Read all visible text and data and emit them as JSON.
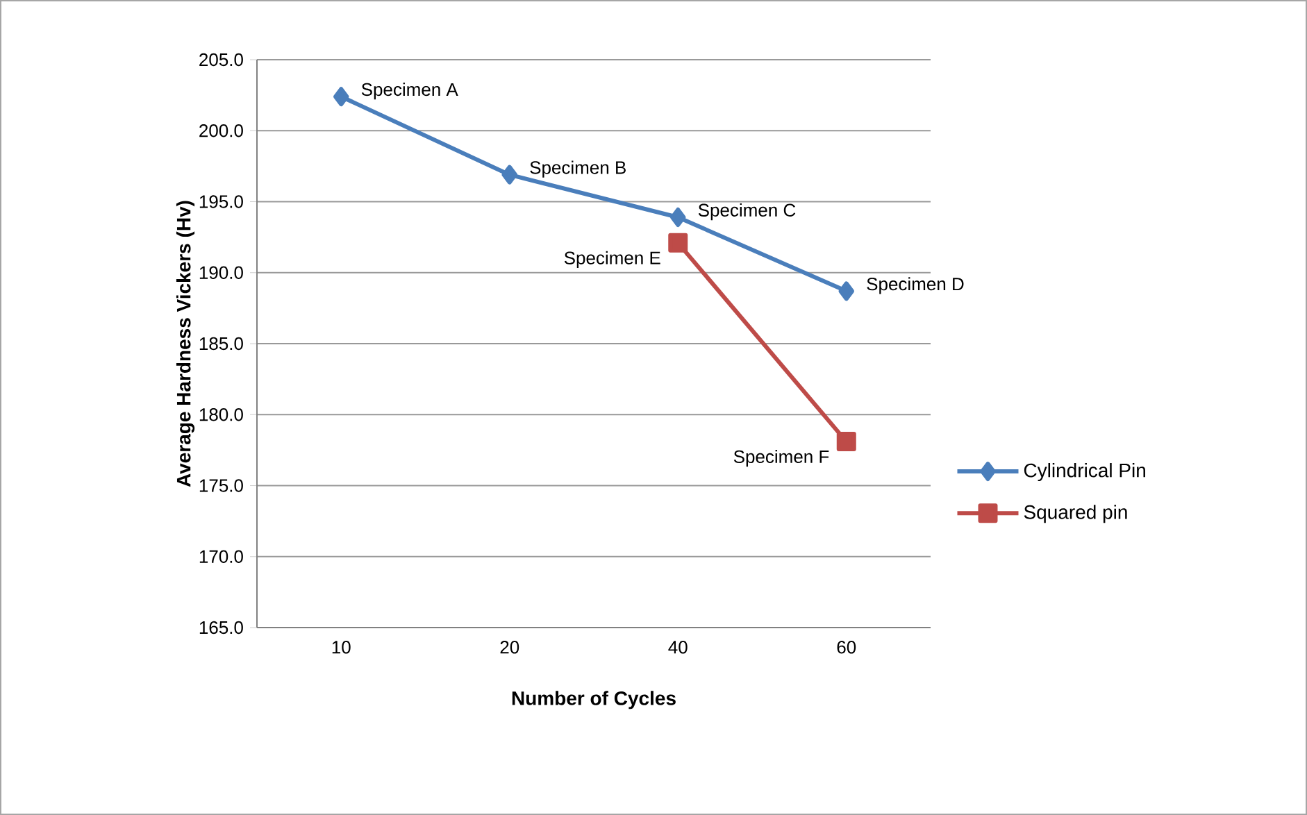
{
  "chart_data": {
    "type": "line",
    "xlabel": "Number of Cycles",
    "ylabel": "Average Hardness Vickers (Hv)",
    "categories": [
      "10",
      "20",
      "40",
      "60"
    ],
    "series": [
      {
        "name": "Cylindrical Pin",
        "color": "#4a7ebb",
        "marker": "diamond",
        "values": [
          202.4,
          196.9,
          193.9,
          188.7
        ]
      },
      {
        "name": "Squared pin",
        "color": "#be4b48",
        "marker": "square",
        "values": [
          null,
          null,
          192.1,
          178.1
        ]
      }
    ],
    "ylim": [
      165,
      205
    ],
    "yticks": [
      {
        "value": 165,
        "label": "165.0"
      },
      {
        "value": 170,
        "label": "170.0"
      },
      {
        "value": 175,
        "label": "175.0"
      },
      {
        "value": 180,
        "label": "180.0"
      },
      {
        "value": 185,
        "label": "185.0"
      },
      {
        "value": 190,
        "label": "190.0"
      },
      {
        "value": 195,
        "label": "195.0"
      },
      {
        "value": 200,
        "label": "200.0"
      },
      {
        "value": 205,
        "label": "205.0"
      }
    ],
    "grid": "y",
    "legend": "right",
    "line_style": "solid",
    "annotations": [
      {
        "text": "Specimen A",
        "x": "10",
        "y": 202.4
      },
      {
        "text": "Specimen B",
        "x": "20",
        "y": 196.9
      },
      {
        "text": "Specimen C",
        "x": "40",
        "y": 193.9
      },
      {
        "text": "Specimen D",
        "x": "60",
        "y": 188.7
      },
      {
        "text": "Specimen E",
        "x": "40",
        "y": 192.1
      },
      {
        "text": "Specimen F",
        "x": "60",
        "y": 178.1
      }
    ]
  }
}
